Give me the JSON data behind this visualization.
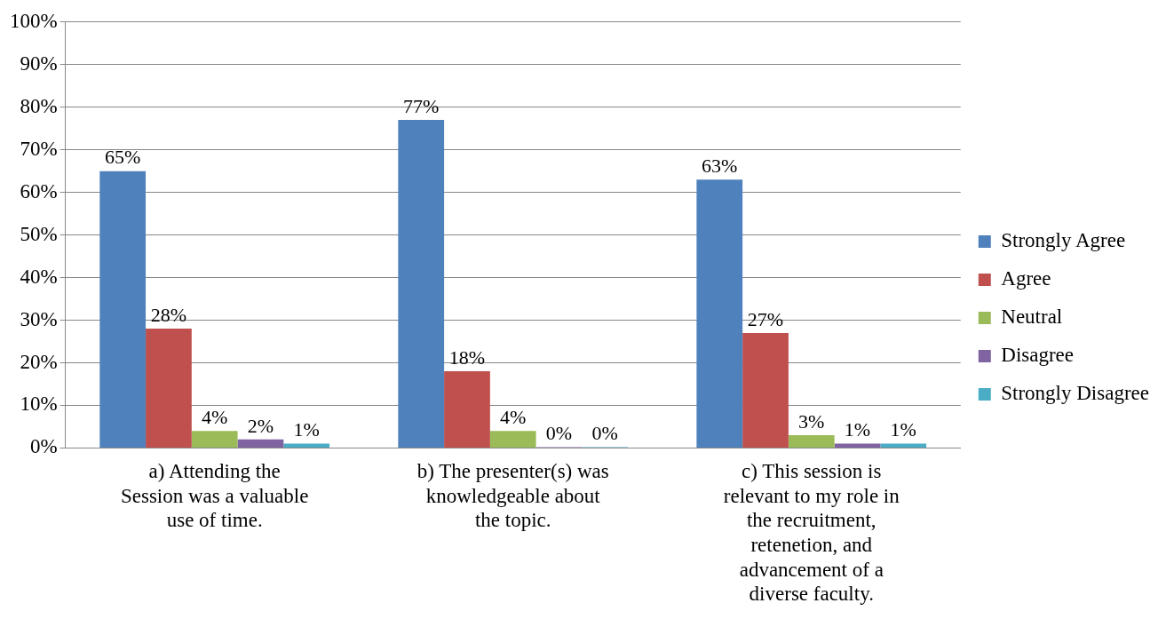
{
  "chart_data": {
    "type": "bar",
    "categories": [
      "a) Attending the Session was a valuable use of time.",
      "b) The presenter(s) was knowledgeable about the topic.",
      "c) This session is relevant to my role in the recruitment, retenetion, and advancement of a diverse faculty."
    ],
    "series": [
      {
        "name": "Strongly Agree",
        "color": "#4f81bd",
        "values": [
          65,
          77,
          63
        ],
        "value_labels": [
          "65%",
          "77%",
          "63%"
        ]
      },
      {
        "name": "Agree",
        "color": "#c0504d",
        "values": [
          28,
          18,
          27
        ],
        "value_labels": [
          "28%",
          "18%",
          "27%"
        ]
      },
      {
        "name": "Neutral",
        "color": "#9bbb59",
        "values": [
          4,
          4,
          3
        ],
        "value_labels": [
          "4%",
          "4%",
          "3%"
        ]
      },
      {
        "name": "Disagree",
        "color": "#8064a2",
        "values": [
          2,
          0,
          1
        ],
        "value_labels": [
          "2%",
          "0%",
          "1%"
        ]
      },
      {
        "name": "Strongly Disagree",
        "color": "#4bacc6",
        "values": [
          1,
          0,
          1
        ],
        "value_labels": [
          "1%",
          "0%",
          "1%"
        ]
      }
    ],
    "ylim": [
      0,
      100
    ],
    "yticks": [
      {
        "value": 0,
        "label": "0%"
      },
      {
        "value": 10,
        "label": "10%"
      },
      {
        "value": 20,
        "label": "20%"
      },
      {
        "value": 30,
        "label": "30%"
      },
      {
        "value": 40,
        "label": "40%"
      },
      {
        "value": 50,
        "label": "50%"
      },
      {
        "value": 60,
        "label": "60%"
      },
      {
        "value": 70,
        "label": "70%"
      },
      {
        "value": 80,
        "label": "80%"
      },
      {
        "value": 90,
        "label": "90%"
      },
      {
        "value": 100,
        "label": "100%"
      }
    ],
    "grid": "y",
    "legend": "right"
  }
}
